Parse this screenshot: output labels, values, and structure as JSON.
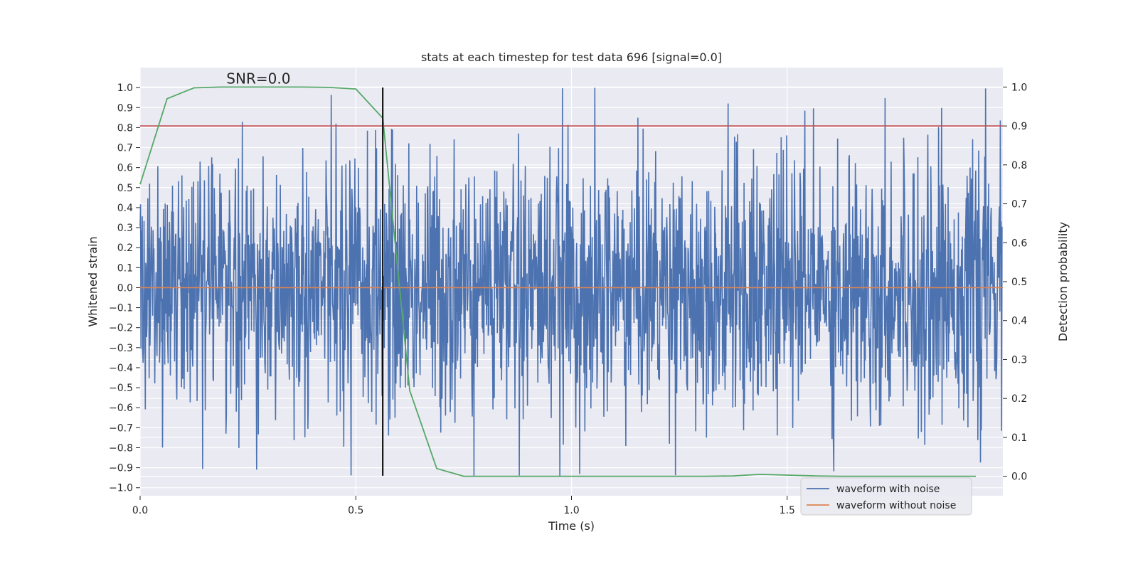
{
  "chart_data": {
    "type": "line",
    "title": "stats at each timestep for test data 696 [signal=0.0]",
    "xlabel": "Time (s)",
    "ylabel": "Whitened strain",
    "y2label": "Detection probability",
    "xlim": [
      0.0,
      2.0
    ],
    "ylim": [
      -1.04,
      1.1
    ],
    "y2lim": [
      -0.05,
      1.05
    ],
    "x_ticks": [
      0.0,
      0.5,
      1.0,
      1.5
    ],
    "x_tick_labels": [
      "0.0",
      "0.5",
      "1.0",
      "1.5"
    ],
    "y_ticks": [
      1.0,
      0.9,
      0.8,
      0.7,
      0.6,
      0.5,
      0.4,
      0.3,
      0.2,
      0.1,
      0.0,
      -0.1,
      -0.2,
      -0.3,
      -0.4,
      -0.5,
      -0.6,
      -0.7,
      -0.8,
      -0.9,
      -1.0
    ],
    "y_tick_labels": [
      "1.0",
      "0.9",
      "0.8",
      "0.7",
      "0.6",
      "0.5",
      "0.4",
      "0.3",
      "0.2",
      "0.1",
      "0.0",
      "−0.1",
      "−0.2",
      "−0.3",
      "−0.4",
      "−0.5",
      "−0.6",
      "−0.7",
      "−0.8",
      "−0.9",
      "−1.0"
    ],
    "y2_ticks": [
      1.0,
      0.9,
      0.8,
      0.7,
      0.6,
      0.5,
      0.4,
      0.3,
      0.2,
      0.1,
      0.0
    ],
    "y2_tick_labels": [
      "1.0",
      "0.9",
      "0.8",
      "0.7",
      "0.6",
      "0.5",
      "0.4",
      "0.3",
      "0.2",
      "0.1",
      "0.0"
    ],
    "annotation": "SNR=0.0",
    "annotation_pos": [
      0.2,
      1.02
    ],
    "grid": true,
    "legend_position": "lower-right",
    "series": [
      {
        "name": "waveform with noise",
        "color": "#4c72b0",
        "axis": "left",
        "n_samples": 2000,
        "amplitude_range": [
          -0.95,
          1.0
        ],
        "note_style": "noise"
      },
      {
        "name": "waveform without noise",
        "color": "#dd8452",
        "axis": "left",
        "x": [
          0.0,
          2.0
        ],
        "y": [
          0.0,
          0.0
        ]
      },
      {
        "axis": "right",
        "color": "#55a868",
        "x": [
          0.0,
          0.0625,
          0.125,
          0.1875,
          0.25,
          0.3125,
          0.375,
          0.4375,
          0.5,
          0.5625,
          0.625,
          0.6875,
          0.75,
          0.8125,
          0.875,
          0.9375,
          1.0,
          1.0625,
          1.125,
          1.1875,
          1.25,
          1.3125,
          1.375,
          1.4375,
          1.5,
          1.5625,
          1.625,
          1.6875,
          1.75,
          1.8125,
          1.875,
          1.9375
        ],
        "y": [
          0.75,
          0.97,
          0.998,
          1.0,
          1.0,
          1.0,
          1.0,
          0.999,
          0.995,
          0.92,
          0.22,
          0.02,
          0.0,
          0.0,
          0.0,
          0.0,
          0.0,
          0.0,
          0.0,
          0.0,
          0.0,
          0.0,
          0.001,
          0.005,
          0.003,
          0.001,
          0.0,
          0.0,
          0.0,
          0.0,
          0.0,
          0.0
        ]
      },
      {
        "axis": "right",
        "color": "#c44e52",
        "type": "hline",
        "y": 0.9
      },
      {
        "axis": "left",
        "color": "#000000",
        "type": "vline",
        "x": 0.5625,
        "y_range": [
          -0.94,
          1.0
        ]
      }
    ]
  }
}
